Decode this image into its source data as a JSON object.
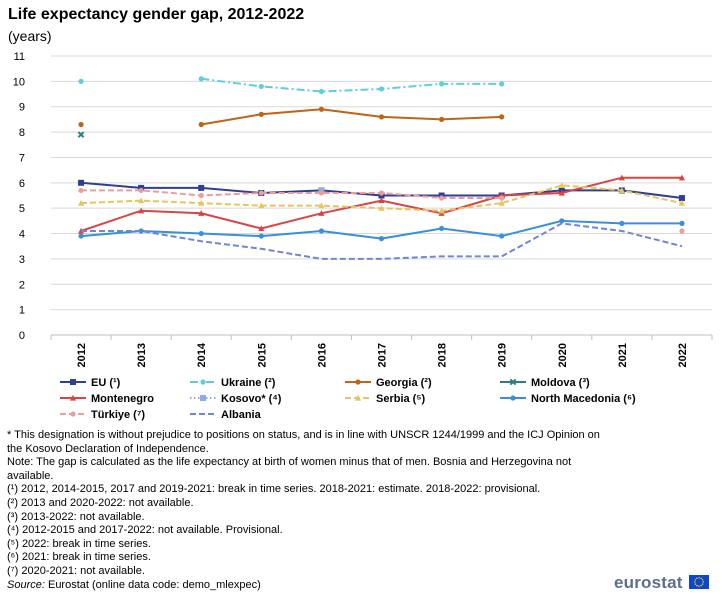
{
  "title": "Life expectancy  gender gap, 2012-2022",
  "subtitle": "(years)",
  "chart_data": {
    "type": "line",
    "title": "Life expectancy  gender gap, 2012-2022",
    "ylabel": "(years)",
    "xlabel": "",
    "ylim": [
      0,
      11
    ],
    "yticks": [
      "0",
      "1",
      "2",
      "3",
      "4",
      "5",
      "6",
      "7",
      "8",
      "9",
      "10",
      "11"
    ],
    "categories": [
      "2012",
      "2013",
      "2014",
      "2015",
      "2016",
      "2017",
      "2018",
      "2019",
      "2020",
      "2021",
      "2022"
    ],
    "grid": true,
    "legend_position": "bottom",
    "series": [
      {
        "name": "EU (¹)",
        "color": "#2f3f93",
        "dash": "solid",
        "marker": "square",
        "values": [
          6.0,
          5.8,
          5.8,
          5.6,
          5.7,
          5.5,
          5.5,
          5.5,
          5.7,
          5.7,
          5.4
        ]
      },
      {
        "name": "Ukraine (²)",
        "color": "#5ccfd9",
        "dash": "dashdot",
        "marker": "circle",
        "values": [
          10.0,
          null,
          10.1,
          9.8,
          9.6,
          9.7,
          9.9,
          9.9,
          null,
          null,
          null
        ]
      },
      {
        "name": "Georgia (²)",
        "color": "#c06414",
        "dash": "solid",
        "marker": "circle",
        "values": [
          8.3,
          null,
          8.3,
          8.7,
          8.9,
          8.6,
          8.5,
          8.6,
          null,
          null,
          null
        ]
      },
      {
        "name": "Moldova (³)",
        "color": "#2c7f80",
        "dash": "solid",
        "marker": "x",
        "values": [
          7.9,
          null,
          null,
          null,
          null,
          null,
          null,
          null,
          null,
          null,
          null
        ]
      },
      {
        "name": "Montenegro",
        "color": "#d84545",
        "dash": "solid",
        "marker": "triangle",
        "values": [
          4.1,
          4.9,
          4.8,
          4.2,
          4.8,
          5.3,
          4.8,
          5.5,
          5.6,
          6.2,
          6.2
        ]
      },
      {
        "name": "Kosovo* (⁴)",
        "color": "#8aaee8",
        "dash": "dot",
        "marker": "square",
        "values": [
          null,
          null,
          null,
          null,
          5.7,
          null,
          null,
          null,
          null,
          null,
          null
        ]
      },
      {
        "name": "Serbia (⁵)",
        "color": "#e8c45f",
        "dash": "dash",
        "marker": "triangle",
        "values": [
          5.2,
          5.3,
          5.2,
          5.1,
          5.1,
          5.0,
          4.9,
          5.2,
          5.9,
          5.7,
          5.2
        ]
      },
      {
        "name": "North Macedonia (⁶)",
        "color": "#3a8fdc",
        "dash": "solid",
        "marker": "circle",
        "values": [
          3.9,
          4.1,
          4.0,
          3.9,
          4.1,
          3.8,
          4.2,
          3.9,
          4.5,
          4.4,
          4.4
        ]
      },
      {
        "name": "Türkiye (⁷)",
        "color": "#ee9b9b",
        "dash": "dash",
        "marker": "circle",
        "values": [
          5.7,
          5.7,
          5.5,
          5.6,
          5.6,
          5.6,
          5.4,
          5.4,
          null,
          null,
          4.1
        ]
      },
      {
        "name": "Albania",
        "color": "#6f86d6",
        "dash": "dash",
        "marker": "none",
        "values": [
          4.1,
          4.1,
          3.7,
          3.4,
          3.0,
          3.0,
          3.1,
          3.1,
          4.4,
          4.1,
          3.5
        ]
      }
    ]
  },
  "notes": {
    "kosovo": "* This designation is without prejudice to positions on status, and is in line with UNSCR 1244/1999 and the ICJ Opinion on the Kosovo Declaration of Independence.",
    "gap": "Note: The gap is calculated as the life expectancy  at birth of women minus that of men. Bosnia and Herzegovina not available.",
    "n1": "(¹) 2012, 2014-2015, 2017 and 2019-2021: break in time series. 2018-2021: estimate. 2018-2022: provisional.",
    "n2": "(²) 2013 and 2020-2022: not available.",
    "n3": "(³) 2013-2022: not available.",
    "n4": "(⁴) 2012-2015 and 2017-2022: not available. Provisional.",
    "n5": "(⁵) 2022: break in time series.",
    "n6": "(⁶) 2021: break in time series.",
    "n7": "(⁷) 2020-2021: not available."
  },
  "source": {
    "label": "Source:",
    "text": " Eurostat (online data code: demo_mlexpec)"
  },
  "logo": {
    "text": "eurostat",
    "flag_color": "#0e47cb",
    "star_color": "#ffe100"
  }
}
